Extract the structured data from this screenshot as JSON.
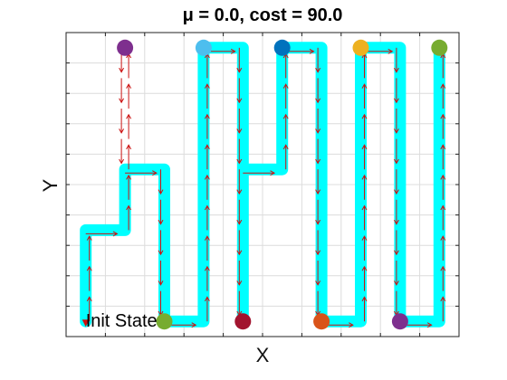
{
  "chart_data": {
    "type": "line",
    "title": "μ = 0.0, cost = 90.0",
    "xlabel": "X",
    "ylabel": "Y",
    "xlim": [
      0,
      10
    ],
    "ylim": [
      0,
      10
    ],
    "x_ticks": [
      0,
      1,
      2,
      3,
      4,
      5,
      6,
      7,
      8,
      9,
      10
    ],
    "y_ticks": [
      0,
      1,
      2,
      3,
      4,
      5,
      6,
      7,
      8,
      9,
      10
    ],
    "grid": true,
    "tick_labels_visible": false,
    "series": [
      {
        "name": "path",
        "color": "#00ffff",
        "points": [
          [
            0.5,
            0.5
          ],
          [
            0.5,
            3.5
          ],
          [
            1.5,
            3.5
          ],
          [
            1.5,
            5.5
          ],
          [
            2.5,
            5.5
          ],
          [
            2.5,
            0.5
          ],
          [
            3.5,
            0.5
          ],
          [
            3.5,
            9.5
          ],
          [
            4.5,
            9.5
          ],
          [
            4.5,
            0.5
          ],
          [
            4.5,
            5.5
          ],
          [
            5.5,
            5.5
          ],
          [
            5.5,
            9.5
          ],
          [
            6.5,
            9.5
          ],
          [
            6.5,
            0.5
          ],
          [
            7.5,
            0.5
          ],
          [
            7.5,
            9.5
          ],
          [
            8.5,
            9.5
          ],
          [
            8.5,
            0.5
          ],
          [
            9.5,
            0.5
          ],
          [
            9.5,
            9.5
          ]
        ]
      }
    ],
    "arrow_color": "#cc1111",
    "arrow_segments": [
      [
        0.5,
        0.5,
        0.5,
        3.5
      ],
      [
        0.5,
        3.5,
        1.5,
        3.5
      ],
      [
        1.5,
        3.5,
        1.5,
        5.5
      ],
      [
        1.5,
        5.5,
        2.5,
        5.5
      ],
      [
        2.5,
        5.5,
        2.5,
        0.5
      ],
      [
        2.5,
        0.5,
        3.5,
        0.5
      ],
      [
        3.5,
        0.5,
        3.5,
        9.5
      ],
      [
        3.5,
        9.5,
        4.5,
        9.5
      ],
      [
        4.5,
        9.5,
        4.5,
        0.5
      ],
      [
        4.5,
        5.5,
        5.5,
        5.5
      ],
      [
        5.5,
        5.5,
        5.5,
        9.5
      ],
      [
        5.5,
        9.5,
        6.5,
        9.5
      ],
      [
        6.5,
        9.5,
        6.5,
        0.5
      ],
      [
        6.5,
        0.5,
        7.5,
        0.5
      ],
      [
        7.5,
        0.5,
        7.5,
        9.5
      ],
      [
        7.5,
        9.5,
        8.5,
        9.5
      ],
      [
        8.5,
        9.5,
        8.5,
        0.5
      ],
      [
        8.5,
        0.5,
        9.5,
        0.5
      ],
      [
        9.5,
        0.5,
        9.5,
        9.5
      ],
      [
        1.5,
        9.5,
        1.5,
        5.5
      ],
      [
        1.5,
        5.5,
        1.5,
        9.5
      ]
    ],
    "markers": [
      {
        "x": 1.5,
        "y": 9.5,
        "color": "#7e2f8e"
      },
      {
        "x": 3.5,
        "y": 9.5,
        "color": "#4dbeee"
      },
      {
        "x": 5.5,
        "y": 9.5,
        "color": "#0072bd"
      },
      {
        "x": 7.5,
        "y": 9.5,
        "color": "#edb120"
      },
      {
        "x": 9.5,
        "y": 9.5,
        "color": "#77ac30"
      },
      {
        "x": 2.5,
        "y": 0.5,
        "color": "#77ac30"
      },
      {
        "x": 4.5,
        "y": 0.5,
        "color": "#a2142f"
      },
      {
        "x": 6.5,
        "y": 0.5,
        "color": "#d95319"
      },
      {
        "x": 8.5,
        "y": 0.5,
        "color": "#7e2f8e"
      }
    ],
    "start_marker": {
      "x": 0.5,
      "y": 0.5,
      "color": "#cc1111"
    },
    "annotations": [
      {
        "text": "Init State",
        "x": 0.5,
        "y": 0.5
      }
    ]
  }
}
